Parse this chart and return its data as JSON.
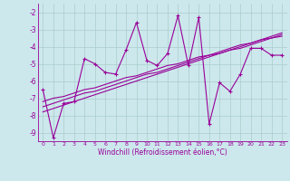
{
  "xlabel": "Windchill (Refroidissement éolien,°C)",
  "x_values": [
    0,
    1,
    2,
    3,
    4,
    5,
    6,
    7,
    8,
    9,
    10,
    11,
    12,
    13,
    14,
    15,
    16,
    17,
    18,
    19,
    20,
    21,
    22,
    23
  ],
  "y_main": [
    -6.5,
    -9.3,
    -7.3,
    -7.2,
    -4.7,
    -5.0,
    -5.5,
    -5.6,
    -4.2,
    -2.6,
    -4.8,
    -5.1,
    -4.4,
    -2.2,
    -5.1,
    -2.3,
    -8.5,
    -6.1,
    -6.6,
    -5.6,
    -4.1,
    -4.1,
    -4.5,
    -4.5
  ],
  "y_trend1": [
    -7.8,
    -7.6,
    -7.4,
    -7.2,
    -7.0,
    -6.8,
    -6.6,
    -6.4,
    -6.2,
    -6.0,
    -5.8,
    -5.6,
    -5.4,
    -5.2,
    -5.0,
    -4.8,
    -4.6,
    -4.4,
    -4.2,
    -4.1,
    -3.9,
    -3.7,
    -3.5,
    -3.4
  ],
  "y_trend2": [
    -7.5,
    -7.3,
    -7.1,
    -6.9,
    -6.7,
    -6.6,
    -6.4,
    -6.2,
    -6.0,
    -5.8,
    -5.6,
    -5.5,
    -5.3,
    -5.1,
    -4.9,
    -4.7,
    -4.5,
    -4.4,
    -4.2,
    -4.0,
    -3.8,
    -3.6,
    -3.5,
    -3.3
  ],
  "y_trend3": [
    -7.2,
    -7.0,
    -6.9,
    -6.7,
    -6.5,
    -6.4,
    -6.2,
    -6.0,
    -5.8,
    -5.7,
    -5.5,
    -5.3,
    -5.1,
    -5.0,
    -4.8,
    -4.6,
    -4.5,
    -4.3,
    -4.1,
    -3.9,
    -3.8,
    -3.6,
    -3.4,
    -3.2
  ],
  "ylim": [
    -9.5,
    -1.5
  ],
  "yticks": [
    -9,
    -8,
    -7,
    -6,
    -5,
    -4,
    -3,
    -2
  ],
  "bg_color": "#cce8ec",
  "line_color": "#990099",
  "grid_color": "#aacccc"
}
